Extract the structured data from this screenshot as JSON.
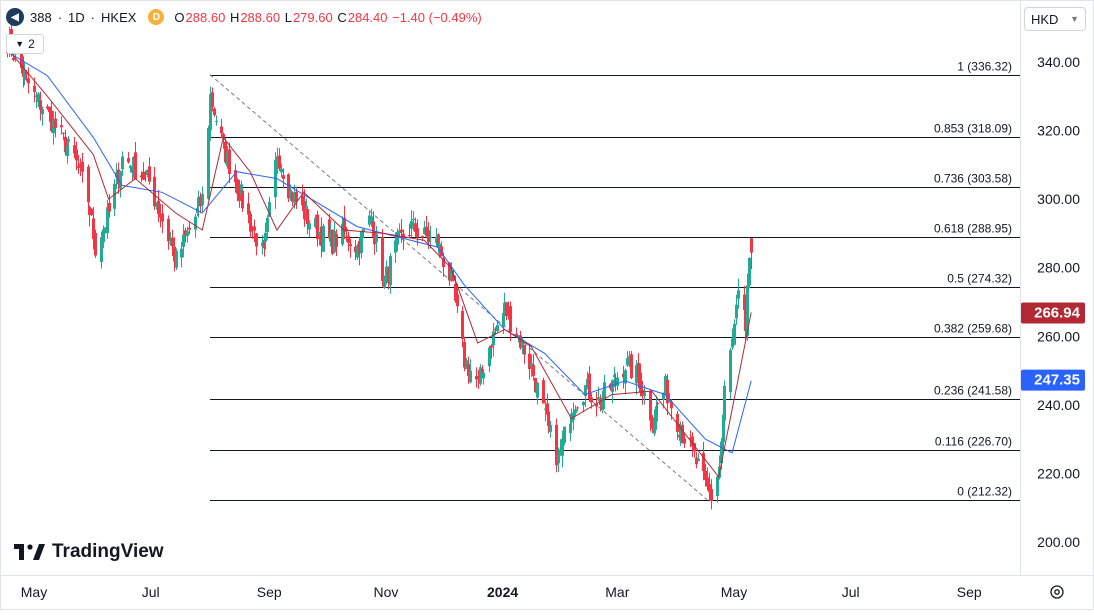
{
  "header": {
    "symbol": "388",
    "separator1": "·",
    "interval": "1D",
    "separator2": "·",
    "exchange": "HKEX",
    "badge": "D",
    "ohlc": [
      {
        "k": "O",
        "v": "288.60"
      },
      {
        "k": "H",
        "v": "288.60"
      },
      {
        "k": "L",
        "v": "279.60"
      },
      {
        "k": "C",
        "v": "284.40"
      },
      {
        "k": "",
        "v": "−1.40 (−0.49%)"
      }
    ],
    "indicator_count": "2"
  },
  "currency": "HKD",
  "brand": "TradingView",
  "colors": {
    "up": "#22ab94",
    "down": "#f23645",
    "ma_fast": "#b22833",
    "ma_slow": "#2962ff",
    "fib_line": "#131722",
    "trend_line": "#787b86"
  },
  "chart_data": {
    "type": "candlestick",
    "y_range": [
      195,
      348
    ],
    "y_ticks": [
      "340.00",
      "320.00",
      "300.00",
      "280.00",
      "260.00",
      "240.00",
      "220.00",
      "200.00"
    ],
    "x_ticks": [
      {
        "label": "May",
        "bold": false
      },
      {
        "label": "Jul",
        "bold": false
      },
      {
        "label": "Sep",
        "bold": false
      },
      {
        "label": "Nov",
        "bold": false
      },
      {
        "label": "2024",
        "bold": true
      },
      {
        "label": "Mar",
        "bold": false
      },
      {
        "label": "May",
        "bold": false
      },
      {
        "label": "Jul",
        "bold": false
      },
      {
        "label": "Sep",
        "bold": false
      }
    ],
    "price_badges": [
      {
        "value": "266.94",
        "color": "#b22833"
      },
      {
        "value": "247.35",
        "color": "#2962ff"
      }
    ],
    "fib_levels": [
      {
        "ratio": "1",
        "price": 336.32,
        "label": "1 (336.32)"
      },
      {
        "ratio": "0.853",
        "price": 318.09,
        "label": "0.853 (318.09)"
      },
      {
        "ratio": "0.736",
        "price": 303.58,
        "label": "0.736 (303.58)"
      },
      {
        "ratio": "0.618",
        "price": 288.95,
        "label": "0.618 (288.95)"
      },
      {
        "ratio": "0.5",
        "price": 274.32,
        "label": "0.5 (274.32)"
      },
      {
        "ratio": "0.382",
        "price": 259.68,
        "label": "0.382 (259.68)"
      },
      {
        "ratio": "0.236",
        "price": 241.58,
        "label": "0.236 (241.58)"
      },
      {
        "ratio": "0.116",
        "price": 226.7,
        "label": "0.116 (226.70)"
      },
      {
        "ratio": "0",
        "price": 212.32,
        "label": "0 (212.32)"
      }
    ],
    "trend_line": {
      "from": [
        "2023-08-01",
        336.32
      ],
      "to": [
        "2024-04-17",
        212.32
      ]
    },
    "close_path": [
      [
        "2023-04-17",
        346
      ],
      [
        "2023-04-24",
        338
      ],
      [
        "2023-05-01",
        330
      ],
      [
        "2023-05-08",
        325
      ],
      [
        "2023-05-15",
        318
      ],
      [
        "2023-05-22",
        312
      ],
      [
        "2023-05-29",
        300
      ],
      [
        "2023-06-02",
        286
      ],
      [
        "2023-06-09",
        296
      ],
      [
        "2023-06-16",
        312
      ],
      [
        "2023-06-23",
        309
      ],
      [
        "2023-06-30",
        305
      ],
      [
        "2023-07-07",
        294
      ],
      [
        "2023-07-14",
        282
      ],
      [
        "2023-07-21",
        291
      ],
      [
        "2023-07-28",
        300
      ],
      [
        "2023-08-01",
        330
      ],
      [
        "2023-08-08",
        315
      ],
      [
        "2023-08-15",
        304
      ],
      [
        "2023-08-22",
        293
      ],
      [
        "2023-08-29",
        283
      ],
      [
        "2023-09-05",
        314
      ],
      [
        "2023-09-12",
        302
      ],
      [
        "2023-09-19",
        296
      ],
      [
        "2023-09-26",
        291
      ],
      [
        "2023-10-03",
        287
      ],
      [
        "2023-10-10",
        290
      ],
      [
        "2023-10-17",
        286
      ],
      [
        "2023-10-24",
        295
      ],
      [
        "2023-10-31",
        276
      ],
      [
        "2023-11-07",
        287
      ],
      [
        "2023-11-14",
        292
      ],
      [
        "2023-11-21",
        289
      ],
      [
        "2023-11-28",
        287
      ],
      [
        "2023-12-05",
        276
      ],
      [
        "2023-12-12",
        253
      ],
      [
        "2023-12-19",
        246
      ],
      [
        "2023-12-26",
        259
      ],
      [
        "2024-01-02",
        268
      ],
      [
        "2024-01-09",
        260
      ],
      [
        "2024-01-16",
        251
      ],
      [
        "2024-01-23",
        236
      ],
      [
        "2024-01-30",
        224
      ],
      [
        "2024-02-06",
        240
      ],
      [
        "2024-02-13",
        245
      ],
      [
        "2024-02-20",
        241
      ],
      [
        "2024-02-27",
        246
      ],
      [
        "2024-03-05",
        252
      ],
      [
        "2024-03-12",
        248
      ],
      [
        "2024-03-19",
        236
      ],
      [
        "2024-03-26",
        245
      ],
      [
        "2024-04-02",
        234
      ],
      [
        "2024-04-09",
        226
      ],
      [
        "2024-04-16",
        216
      ],
      [
        "2024-04-19",
        213
      ],
      [
        "2024-04-23",
        222
      ],
      [
        "2024-04-26",
        244
      ],
      [
        "2024-05-01",
        262
      ],
      [
        "2024-05-03",
        271
      ],
      [
        "2024-05-07",
        262
      ],
      [
        "2024-05-08",
        275
      ],
      [
        "2024-05-10",
        284.4
      ]
    ],
    "ma_fast_path": [
      [
        "2023-04-17",
        344
      ],
      [
        "2023-05-08",
        330
      ],
      [
        "2023-06-01",
        313
      ],
      [
        "2023-06-09",
        300
      ],
      [
        "2023-06-23",
        306
      ],
      [
        "2023-07-14",
        296
      ],
      [
        "2023-07-28",
        291
      ],
      [
        "2023-08-08",
        318
      ],
      [
        "2023-08-22",
        308
      ],
      [
        "2023-09-05",
        291
      ],
      [
        "2023-09-19",
        302
      ],
      [
        "2023-10-10",
        291
      ],
      [
        "2023-10-31",
        290
      ],
      [
        "2023-11-21",
        288
      ],
      [
        "2023-12-05",
        280
      ],
      [
        "2023-12-19",
        258
      ],
      [
        "2024-01-02",
        262
      ],
      [
        "2024-01-16",
        257
      ],
      [
        "2024-02-06",
        236
      ],
      [
        "2024-02-27",
        243
      ],
      [
        "2024-03-19",
        244
      ],
      [
        "2024-04-09",
        229
      ],
      [
        "2024-04-23",
        219
      ],
      [
        "2024-05-03",
        247
      ],
      [
        "2024-05-10",
        267
      ]
    ],
    "ma_slow_path": [
      [
        "2023-04-17",
        343
      ],
      [
        "2023-05-08",
        336
      ],
      [
        "2023-06-01",
        318
      ],
      [
        "2023-06-16",
        304
      ],
      [
        "2023-07-07",
        302
      ],
      [
        "2023-07-28",
        296
      ],
      [
        "2023-08-15",
        308
      ],
      [
        "2023-09-05",
        306
      ],
      [
        "2023-09-26",
        299
      ],
      [
        "2023-10-17",
        292
      ],
      [
        "2023-11-07",
        289
      ],
      [
        "2023-11-28",
        286
      ],
      [
        "2023-12-12",
        275
      ],
      [
        "2024-01-02",
        262
      ],
      [
        "2024-01-23",
        255
      ],
      [
        "2024-02-13",
        243
      ],
      [
        "2024-03-05",
        247
      ],
      [
        "2024-03-26",
        243
      ],
      [
        "2024-04-16",
        230
      ],
      [
        "2024-04-30",
        226
      ],
      [
        "2024-05-10",
        247
      ]
    ]
  }
}
